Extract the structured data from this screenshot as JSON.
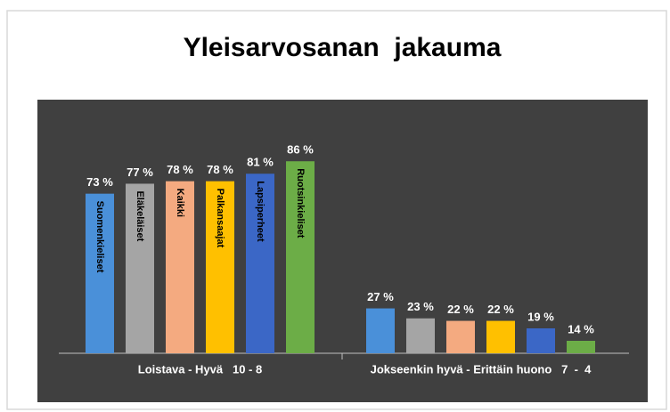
{
  "chart_data": {
    "type": "bar",
    "title": "Yleisarvosanan  jakauma",
    "categories": [
      "Loistava - Hyvä   10 - 8",
      "Jokseenkin hyvä - Erittäin huono   7  -  4"
    ],
    "series": [
      {
        "name": "Suomenkieliset",
        "color": "#4a90d9",
        "values": [
          73,
          27
        ],
        "value_labels": [
          "73 %",
          "27 %"
        ]
      },
      {
        "name": "Eläkeläiset",
        "color": "#a5a5a5",
        "values": [
          77,
          23
        ],
        "value_labels": [
          "77 %",
          "23 %"
        ]
      },
      {
        "name": "Kaikki",
        "color": "#f4aa80",
        "values": [
          78,
          22
        ],
        "value_labels": [
          "78 %",
          "22 %"
        ]
      },
      {
        "name": "Palkansaajat",
        "color": "#ffc000",
        "values": [
          78,
          22
        ],
        "value_labels": [
          "78 %",
          "22 %"
        ]
      },
      {
        "name": "Lapsiperheet",
        "color": "#3b67c6",
        "values": [
          81,
          19
        ],
        "value_labels": [
          "81 %",
          "19 %"
        ]
      },
      {
        "name": "Ruotsinkieliset",
        "color": "#6cad47",
        "values": [
          86,
          14
        ],
        "value_labels": [
          "86 %",
          "14 %"
        ]
      }
    ],
    "ylim": [
      9,
      100
    ]
  }
}
